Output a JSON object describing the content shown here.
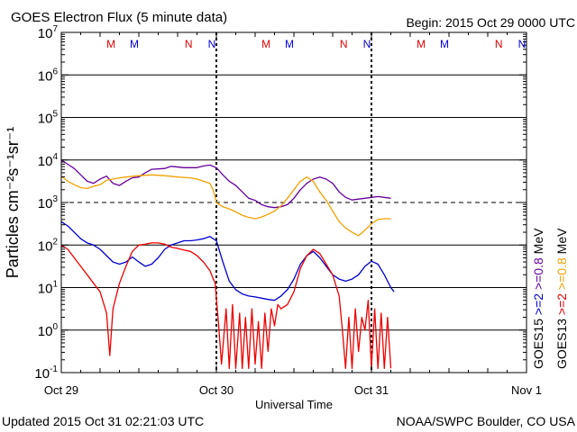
{
  "header": {
    "title": "GOES Electron Flux (5 minute data)",
    "begin": "Begin: 2015 Oct 29 0000 UTC"
  },
  "footer": {
    "updated": "Updated 2015 Oct 31 02:21:03 UTC",
    "source": "NOAA/SWPC Boulder, CO USA"
  },
  "chart_data": {
    "type": "line",
    "title": "GOES Electron Flux (5 minute data)",
    "xlabel": "Universal Time",
    "ylabel": "Particles cm⁻²s⁻¹sr⁻¹",
    "xlim": [
      0,
      72
    ],
    "ylim_log10": [
      -1,
      7
    ],
    "grid": true,
    "x_ticks": [
      {
        "hour": 0,
        "label": "Oct 29"
      },
      {
        "hour": 24,
        "label": "Oct 30"
      },
      {
        "hour": 48,
        "label": "Oct 31"
      },
      {
        "hour": 72,
        "label": "Nov 1"
      }
    ],
    "y_ticks": [
      {
        "exp": 7,
        "base": "10",
        "sup": "7"
      },
      {
        "exp": 6,
        "base": "10",
        "sup": "6"
      },
      {
        "exp": 5,
        "base": "10",
        "sup": "5"
      },
      {
        "exp": 4,
        "base": "10",
        "sup": "4"
      },
      {
        "exp": 3,
        "base": "10",
        "sup": "3"
      },
      {
        "exp": 2,
        "base": "10",
        "sup": "2"
      },
      {
        "exp": 1,
        "base": "10",
        "sup": "1"
      },
      {
        "exp": 0,
        "base": "10",
        "sup": "0"
      },
      {
        "exp": -1,
        "base": "10",
        "sup": "-1"
      }
    ],
    "threshold_log10": 3,
    "day_boundaries": [
      24,
      48
    ],
    "markers": [
      {
        "hour": 7.7,
        "label": "M",
        "color": "#dd0000"
      },
      {
        "hour": 11.3,
        "label": "M",
        "color": "#0000dd"
      },
      {
        "hour": 19.7,
        "label": "N",
        "color": "#dd0000"
      },
      {
        "hour": 23.3,
        "label": "N",
        "color": "#0000dd"
      },
      {
        "hour": 31.7,
        "label": "M",
        "color": "#dd0000"
      },
      {
        "hour": 35.3,
        "label": "M",
        "color": "#0000dd"
      },
      {
        "hour": 43.7,
        "label": "N",
        "color": "#dd0000"
      },
      {
        "hour": 47.3,
        "label": "N",
        "color": "#0000dd"
      },
      {
        "hour": 55.7,
        "label": "M",
        "color": "#dd0000"
      },
      {
        "hour": 59.3,
        "label": "M",
        "color": "#0000dd"
      },
      {
        "hour": 67.7,
        "label": "N",
        "color": "#dd0000"
      },
      {
        "hour": 71.3,
        "label": "N",
        "color": "#0000dd"
      }
    ],
    "series": [
      {
        "name": "GOES15 >=0.8 MeV",
        "color": "#660099",
        "points": [
          [
            0,
            4.0
          ],
          [
            1,
            3.9
          ],
          [
            2,
            3.8
          ],
          [
            3,
            3.65
          ],
          [
            4,
            3.5
          ],
          [
            5,
            3.45
          ],
          [
            6,
            3.55
          ],
          [
            7,
            3.62
          ],
          [
            8,
            3.45
          ],
          [
            9,
            3.4
          ],
          [
            10,
            3.5
          ],
          [
            11,
            3.58
          ],
          [
            12,
            3.6
          ],
          [
            13,
            3.7
          ],
          [
            14,
            3.78
          ],
          [
            16,
            3.8
          ],
          [
            17,
            3.85
          ],
          [
            19,
            3.82
          ],
          [
            21,
            3.82
          ],
          [
            22,
            3.86
          ],
          [
            23,
            3.88
          ],
          [
            24,
            3.82
          ],
          [
            25,
            3.65
          ],
          [
            26,
            3.5
          ],
          [
            27,
            3.4
          ],
          [
            28,
            3.25
          ],
          [
            29,
            3.1
          ],
          [
            30,
            3.05
          ],
          [
            31,
            2.95
          ],
          [
            32,
            2.9
          ],
          [
            33,
            2.88
          ],
          [
            34,
            2.9
          ],
          [
            35,
            2.95
          ],
          [
            36,
            3.1
          ],
          [
            37,
            3.3
          ],
          [
            38,
            3.45
          ],
          [
            39,
            3.55
          ],
          [
            40,
            3.6
          ],
          [
            41,
            3.55
          ],
          [
            42,
            3.45
          ],
          [
            43,
            3.25
          ],
          [
            44,
            3.12
          ],
          [
            45,
            3.06
          ],
          [
            46,
            3.08
          ],
          [
            47,
            3.1
          ],
          [
            48,
            3.12
          ],
          [
            49,
            3.14
          ],
          [
            50,
            3.12
          ],
          [
            51,
            3.1
          ]
        ]
      },
      {
        "name": "GOES13 >=0.8 MeV",
        "color": "#f0a000",
        "points": [
          [
            0,
            3.62
          ],
          [
            1,
            3.5
          ],
          [
            2,
            3.42
          ],
          [
            3,
            3.35
          ],
          [
            4,
            3.33
          ],
          [
            5,
            3.38
          ],
          [
            6,
            3.42
          ],
          [
            7,
            3.52
          ],
          [
            8,
            3.55
          ],
          [
            9,
            3.58
          ],
          [
            10,
            3.6
          ],
          [
            12,
            3.63
          ],
          [
            14,
            3.65
          ],
          [
            16,
            3.63
          ],
          [
            18,
            3.6
          ],
          [
            20,
            3.58
          ],
          [
            21,
            3.55
          ],
          [
            22,
            3.5
          ],
          [
            23,
            3.45
          ],
          [
            23.5,
            3.3
          ],
          [
            24,
            3.0
          ],
          [
            25,
            2.9
          ],
          [
            26,
            2.85
          ],
          [
            27,
            2.78
          ],
          [
            28,
            2.7
          ],
          [
            29,
            2.65
          ],
          [
            30,
            2.62
          ],
          [
            31,
            2.66
          ],
          [
            32,
            2.72
          ],
          [
            33,
            2.8
          ],
          [
            34,
            2.92
          ],
          [
            35,
            3.1
          ],
          [
            36,
            3.3
          ],
          [
            37,
            3.5
          ],
          [
            38,
            3.6
          ],
          [
            39,
            3.5
          ],
          [
            40,
            3.25
          ],
          [
            41,
            3.05
          ],
          [
            42,
            2.8
          ],
          [
            43,
            2.55
          ],
          [
            44,
            2.4
          ],
          [
            45,
            2.3
          ],
          [
            46,
            2.22
          ],
          [
            47,
            2.35
          ],
          [
            48,
            2.5
          ],
          [
            49,
            2.6
          ],
          [
            50,
            2.62
          ],
          [
            51,
            2.62
          ]
        ]
      },
      {
        "name": "GOES15 >=2 MeV",
        "color": "#0000cc",
        "points": [
          [
            0,
            2.55
          ],
          [
            1,
            2.45
          ],
          [
            2,
            2.3
          ],
          [
            3,
            2.15
          ],
          [
            4,
            2.05
          ],
          [
            5,
            2.0
          ],
          [
            6,
            1.9
          ],
          [
            7,
            1.75
          ],
          [
            8,
            1.6
          ],
          [
            9,
            1.55
          ],
          [
            10,
            1.6
          ],
          [
            11,
            1.72
          ],
          [
            12,
            1.6
          ],
          [
            13,
            1.5
          ],
          [
            14,
            1.55
          ],
          [
            15,
            1.7
          ],
          [
            16,
            1.9
          ],
          [
            17,
            2.0
          ],
          [
            18,
            2.05
          ],
          [
            19,
            2.1
          ],
          [
            20,
            2.1
          ],
          [
            21,
            2.12
          ],
          [
            22,
            2.15
          ],
          [
            23,
            2.2
          ],
          [
            24,
            2.1
          ],
          [
            25,
            1.6
          ],
          [
            26,
            1.15
          ],
          [
            27,
            0.95
          ],
          [
            28,
            0.85
          ],
          [
            29,
            0.8
          ],
          [
            30,
            0.78
          ],
          [
            31,
            0.75
          ],
          [
            32,
            0.72
          ],
          [
            33,
            0.7
          ],
          [
            34,
            0.8
          ],
          [
            35,
            0.95
          ],
          [
            36,
            1.2
          ],
          [
            37,
            1.55
          ],
          [
            38,
            1.75
          ],
          [
            39,
            1.85
          ],
          [
            40,
            1.7
          ],
          [
            41,
            1.5
          ],
          [
            42,
            1.3
          ],
          [
            43,
            1.2
          ],
          [
            44,
            1.15
          ],
          [
            45,
            1.2
          ],
          [
            46,
            1.3
          ],
          [
            47,
            1.5
          ],
          [
            48,
            1.62
          ],
          [
            49,
            1.55
          ],
          [
            50,
            1.3
          ],
          [
            51,
            1.0
          ],
          [
            51.5,
            0.9
          ]
        ]
      },
      {
        "name": "GOES13 >=2 MeV",
        "color": "#ee0000",
        "points": [
          [
            0,
            2.0
          ],
          [
            1,
            1.9
          ],
          [
            2,
            1.7
          ],
          [
            3,
            1.5
          ],
          [
            4,
            1.3
          ],
          [
            5,
            1.1
          ],
          [
            6,
            0.9
          ],
          [
            7,
            0.4
          ],
          [
            7.5,
            -0.6
          ],
          [
            8,
            0.5
          ],
          [
            9,
            1.1
          ],
          [
            10,
            1.5
          ],
          [
            11,
            1.85
          ],
          [
            12,
            2.0
          ],
          [
            13,
            2.02
          ],
          [
            14,
            2.05
          ],
          [
            15,
            2.05
          ],
          [
            16,
            2.02
          ],
          [
            17,
            1.95
          ],
          [
            18,
            1.92
          ],
          [
            19,
            1.88
          ],
          [
            20,
            1.85
          ],
          [
            21,
            1.75
          ],
          [
            22,
            1.6
          ],
          [
            23,
            1.4
          ],
          [
            23.8,
            1.1
          ],
          [
            24.3,
            0.2
          ],
          [
            24.8,
            -0.8
          ],
          [
            25.5,
            0.5
          ],
          [
            26,
            -0.9
          ],
          [
            26.5,
            0.6
          ],
          [
            27,
            -0.9
          ],
          [
            27.6,
            0.4
          ],
          [
            28,
            -0.9
          ],
          [
            28.5,
            0.3
          ],
          [
            29,
            -0.9
          ],
          [
            29.5,
            0.5
          ],
          [
            30,
            -0.8
          ],
          [
            30.5,
            0.2
          ],
          [
            31,
            -0.9
          ],
          [
            31.5,
            0.4
          ],
          [
            32,
            -0.5
          ],
          [
            32.5,
            0.5
          ],
          [
            33,
            0.1
          ],
          [
            33.5,
            0.6
          ],
          [
            34,
            0.5
          ],
          [
            35,
            0.6
          ],
          [
            36,
            0.9
          ],
          [
            37,
            1.45
          ],
          [
            38,
            1.75
          ],
          [
            39,
            1.9
          ],
          [
            40,
            1.8
          ],
          [
            41,
            1.55
          ],
          [
            42,
            1.3
          ],
          [
            43,
            0.8
          ],
          [
            43.5,
            0.0
          ],
          [
            44,
            -0.9
          ],
          [
            44.5,
            0.3
          ],
          [
            45,
            -0.9
          ],
          [
            45.5,
            0.5
          ],
          [
            46,
            -0.5
          ],
          [
            46.5,
            0.3
          ],
          [
            47,
            0.0
          ],
          [
            47.5,
            0.7
          ],
          [
            48,
            -0.9
          ],
          [
            48.5,
            0.5
          ],
          [
            49,
            -0.9
          ],
          [
            49.5,
            0.4
          ],
          [
            50,
            -0.9
          ],
          [
            50.5,
            0.3
          ],
          [
            51,
            -0.9
          ]
        ]
      }
    ],
    "right_labels": [
      {
        "text": "GOES15  >=2  >=0.8 MeV",
        "label_a": "GOES15",
        "label_b": ">=2",
        "label_c": ">=0.8",
        "label_d": "MeV"
      },
      {
        "text": "GOES13  >=2  >=0.8 MeV",
        "label_a": "GOES13",
        "label_b": ">=2",
        "label_c": ">=0.8",
        "label_d": "MeV"
      }
    ],
    "right_colors": {
      "goes15_low": "#0000cc",
      "goes15_high": "#660099",
      "goes13_low": "#ee0000",
      "goes13_high": "#f0a000"
    }
  }
}
